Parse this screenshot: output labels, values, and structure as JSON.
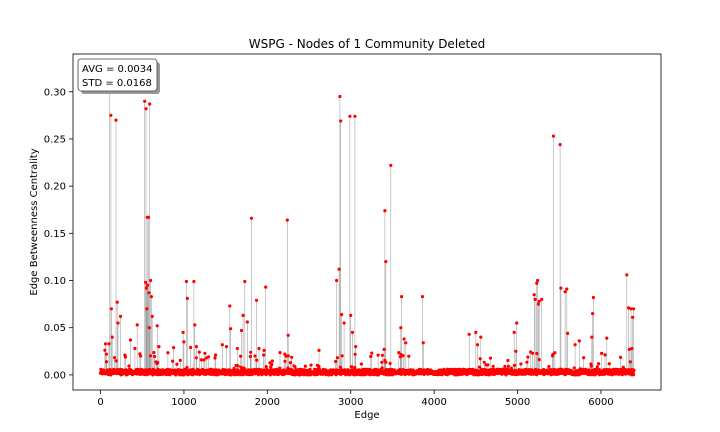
{
  "chart_data": {
    "type": "scatter",
    "title": "WSPG - Nodes of 1 Community Deleted",
    "xlabel": "Edge",
    "ylabel": "Edge Betweenness Centrality",
    "xlim": [
      -330,
      6720
    ],
    "ylim": [
      -0.016,
      0.34
    ],
    "xticks": [
      0,
      1000,
      2000,
      3000,
      4000,
      5000,
      6000
    ],
    "xtick_labels": [
      "0",
      "1000",
      "2000",
      "3000",
      "4000",
      "5000",
      "6000"
    ],
    "yticks": [
      0.0,
      0.05,
      0.1,
      0.15,
      0.2,
      0.25,
      0.3
    ],
    "ytick_labels": [
      "0.00",
      "0.05",
      "0.10",
      "0.15",
      "0.20",
      "0.25",
      "0.30"
    ],
    "grid": false,
    "series_color": "#ff0000",
    "stem_color": "#808080",
    "annotation": {
      "avg_label": "AVG = 0.0034",
      "std_label": "STD = 0.0168"
    },
    "n_edges": 6400,
    "baseline_level": 0.002,
    "peaks": [
      {
        "x": 110,
        "y": 0.305
      },
      {
        "x": 125,
        "y": 0.275
      },
      {
        "x": 130,
        "y": 0.07
      },
      {
        "x": 140,
        "y": 0.04
      },
      {
        "x": 185,
        "y": 0.27
      },
      {
        "x": 200,
        "y": 0.077
      },
      {
        "x": 210,
        "y": 0.055
      },
      {
        "x": 240,
        "y": 0.062
      },
      {
        "x": 60,
        "y": 0.033
      },
      {
        "x": 70,
        "y": 0.022
      },
      {
        "x": 100,
        "y": 0.033
      },
      {
        "x": 300,
        "y": 0.019
      },
      {
        "x": 360,
        "y": 0.037
      },
      {
        "x": 440,
        "y": 0.053
      },
      {
        "x": 480,
        "y": 0.02
      },
      {
        "x": 530,
        "y": 0.29
      },
      {
        "x": 545,
        "y": 0.282
      },
      {
        "x": 560,
        "y": 0.167
      },
      {
        "x": 575,
        "y": 0.167
      },
      {
        "x": 590,
        "y": 0.287
      },
      {
        "x": 600,
        "y": 0.1
      },
      {
        "x": 540,
        "y": 0.098
      },
      {
        "x": 550,
        "y": 0.092
      },
      {
        "x": 565,
        "y": 0.095
      },
      {
        "x": 580,
        "y": 0.087
      },
      {
        "x": 610,
        "y": 0.083
      },
      {
        "x": 620,
        "y": 0.062
      },
      {
        "x": 555,
        "y": 0.07
      },
      {
        "x": 585,
        "y": 0.05
      },
      {
        "x": 680,
        "y": 0.052
      },
      {
        "x": 700,
        "y": 0.03
      },
      {
        "x": 1030,
        "y": 0.099
      },
      {
        "x": 1040,
        "y": 0.081
      },
      {
        "x": 1120,
        "y": 0.099
      },
      {
        "x": 1130,
        "y": 0.053
      },
      {
        "x": 990,
        "y": 0.045
      },
      {
        "x": 1000,
        "y": 0.035
      },
      {
        "x": 1080,
        "y": 0.029
      },
      {
        "x": 1150,
        "y": 0.03
      },
      {
        "x": 1270,
        "y": 0.018
      },
      {
        "x": 1460,
        "y": 0.032
      },
      {
        "x": 1510,
        "y": 0.03
      },
      {
        "x": 1550,
        "y": 0.073
      },
      {
        "x": 1560,
        "y": 0.049
      },
      {
        "x": 1640,
        "y": 0.028
      },
      {
        "x": 1690,
        "y": 0.047
      },
      {
        "x": 1710,
        "y": 0.063
      },
      {
        "x": 1730,
        "y": 0.099
      },
      {
        "x": 1760,
        "y": 0.056
      },
      {
        "x": 1810,
        "y": 0.166
      },
      {
        "x": 1870,
        "y": 0.079
      },
      {
        "x": 1980,
        "y": 0.093
      },
      {
        "x": 1900,
        "y": 0.028
      },
      {
        "x": 1960,
        "y": 0.026
      },
      {
        "x": 2240,
        "y": 0.164
      },
      {
        "x": 2250,
        "y": 0.042
      },
      {
        "x": 2210,
        "y": 0.022
      },
      {
        "x": 2620,
        "y": 0.026
      },
      {
        "x": 2830,
        "y": 0.1
      },
      {
        "x": 2870,
        "y": 0.295
      },
      {
        "x": 2880,
        "y": 0.269
      },
      {
        "x": 2860,
        "y": 0.112
      },
      {
        "x": 2890,
        "y": 0.064
      },
      {
        "x": 2920,
        "y": 0.055
      },
      {
        "x": 2990,
        "y": 0.274
      },
      {
        "x": 3050,
        "y": 0.274
      },
      {
        "x": 3000,
        "y": 0.063
      },
      {
        "x": 3020,
        "y": 0.045
      },
      {
        "x": 3060,
        "y": 0.03
      },
      {
        "x": 3410,
        "y": 0.174
      },
      {
        "x": 3420,
        "y": 0.12
      },
      {
        "x": 3480,
        "y": 0.222
      },
      {
        "x": 3400,
        "y": 0.027
      },
      {
        "x": 3610,
        "y": 0.083
      },
      {
        "x": 3600,
        "y": 0.05
      },
      {
        "x": 3640,
        "y": 0.038
      },
      {
        "x": 3660,
        "y": 0.034
      },
      {
        "x": 3860,
        "y": 0.083
      },
      {
        "x": 3870,
        "y": 0.034
      },
      {
        "x": 4420,
        "y": 0.043
      },
      {
        "x": 4500,
        "y": 0.045
      },
      {
        "x": 4520,
        "y": 0.032
      },
      {
        "x": 4560,
        "y": 0.04
      },
      {
        "x": 4960,
        "y": 0.045
      },
      {
        "x": 4990,
        "y": 0.055
      },
      {
        "x": 4980,
        "y": 0.025
      },
      {
        "x": 5200,
        "y": 0.085
      },
      {
        "x": 5210,
        "y": 0.08
      },
      {
        "x": 5230,
        "y": 0.097
      },
      {
        "x": 5240,
        "y": 0.1
      },
      {
        "x": 5260,
        "y": 0.078
      },
      {
        "x": 5290,
        "y": 0.08
      },
      {
        "x": 5250,
        "y": 0.075
      },
      {
        "x": 5430,
        "y": 0.253
      },
      {
        "x": 5510,
        "y": 0.244
      },
      {
        "x": 5520,
        "y": 0.092
      },
      {
        "x": 5570,
        "y": 0.088
      },
      {
        "x": 5590,
        "y": 0.091
      },
      {
        "x": 5600,
        "y": 0.044
      },
      {
        "x": 5740,
        "y": 0.036
      },
      {
        "x": 5690,
        "y": 0.032
      },
      {
        "x": 5910,
        "y": 0.082
      },
      {
        "x": 5900,
        "y": 0.065
      },
      {
        "x": 5890,
        "y": 0.04
      },
      {
        "x": 6070,
        "y": 0.039
      },
      {
        "x": 6310,
        "y": 0.106
      },
      {
        "x": 6330,
        "y": 0.071
      },
      {
        "x": 6360,
        "y": 0.07
      },
      {
        "x": 6380,
        "y": 0.061
      },
      {
        "x": 6390,
        "y": 0.07
      },
      {
        "x": 6370,
        "y": 0.028
      },
      {
        "x": 6340,
        "y": 0.027
      }
    ],
    "noise_clusters": [
      {
        "x_start": 0,
        "x_end": 1000,
        "max": 0.03
      },
      {
        "x_start": 1000,
        "x_end": 2300,
        "max": 0.025
      },
      {
        "x_start": 2300,
        "x_end": 2800,
        "max": 0.012
      },
      {
        "x_start": 2800,
        "x_end": 3700,
        "max": 0.025
      },
      {
        "x_start": 3700,
        "x_end": 4400,
        "max": 0.006
      },
      {
        "x_start": 4400,
        "x_end": 5100,
        "max": 0.018
      },
      {
        "x_start": 5100,
        "x_end": 6420,
        "max": 0.025
      }
    ]
  }
}
